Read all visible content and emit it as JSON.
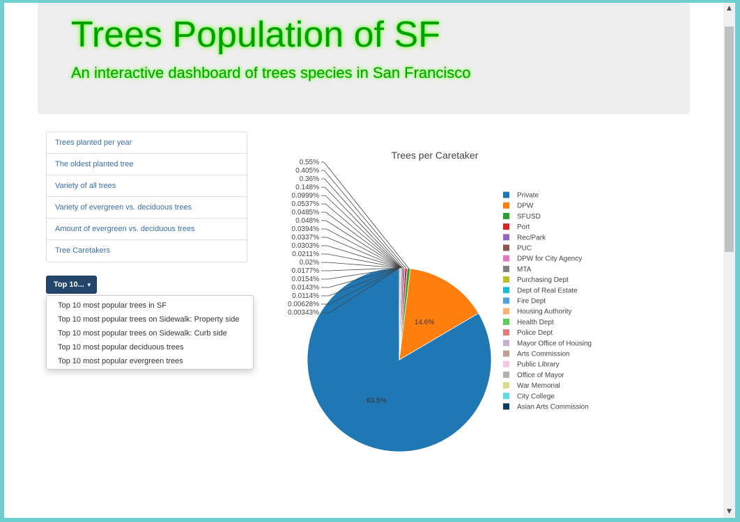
{
  "header": {
    "title": "Trees Population of SF",
    "subtitle": "An interactive dashboard of trees species in San Francisco"
  },
  "nav": {
    "items": [
      {
        "label": "Trees planted per year"
      },
      {
        "label": "The oldest planted tree"
      },
      {
        "label": "Variety of all trees"
      },
      {
        "label": "Variety of evergreen vs. deciduous trees"
      },
      {
        "label": "Amount of evergreen vs. deciduous trees"
      },
      {
        "label": "Tree Caretakers"
      }
    ]
  },
  "dropdown": {
    "button_label": "Top 10...",
    "caret_icon": "caret-down-icon",
    "items": [
      {
        "label": "Top 10 most popular trees in SF"
      },
      {
        "label": "Top 10 most popular trees on Sidewalk: Property side"
      },
      {
        "label": "Top 10 most popular trees on Sidewalk: Curb side"
      },
      {
        "label": "Top 10 most popular deciduous trees"
      },
      {
        "label": "Top 10 most popular evergreen trees"
      }
    ]
  },
  "chart_data": {
    "type": "pie",
    "title": "Trees per Caretaker",
    "legend_position": "right",
    "slices": [
      {
        "name": "Private",
        "percent": 83.5,
        "label": "83.5%",
        "color": "#1f77b4"
      },
      {
        "name": "DPW",
        "percent": 14.6,
        "label": "14.6%",
        "color": "#ff7f0e"
      },
      {
        "name": "SFUSD",
        "percent": 0.55,
        "label": "0.55%",
        "color": "#2ca02c"
      },
      {
        "name": "Port",
        "percent": 0.405,
        "label": "0.405%",
        "color": "#d62728"
      },
      {
        "name": "Rec/Park",
        "percent": 0.36,
        "label": "0.36%",
        "color": "#9467bd"
      },
      {
        "name": "PUC",
        "percent": 0.148,
        "label": "0.148%",
        "color": "#8c564b"
      },
      {
        "name": "DPW for City Agency",
        "percent": 0.0999,
        "label": "0.0999%",
        "color": "#e377c2"
      },
      {
        "name": "MTA",
        "percent": 0.0537,
        "label": "0.0537%",
        "color": "#7f7f7f"
      },
      {
        "name": "Purchasing Dept",
        "percent": 0.0485,
        "label": "0.0485%",
        "color": "#bcbd22"
      },
      {
        "name": "Dept of Real Estate",
        "percent": 0.048,
        "label": "0.048%",
        "color": "#17becf"
      },
      {
        "name": "Fire Dept",
        "percent": 0.0394,
        "label": "0.0394%",
        "color": "#4fa3d8"
      },
      {
        "name": "Housing Authority",
        "percent": 0.0337,
        "label": "0.0337%",
        "color": "#ffb070"
      },
      {
        "name": "Health Dept",
        "percent": 0.0303,
        "label": "0.0303%",
        "color": "#5ccc5c"
      },
      {
        "name": "Police Dept",
        "percent": 0.0211,
        "label": "0.0211%",
        "color": "#e07b7b"
      },
      {
        "name": "Mayor Office of Housing",
        "percent": 0.02,
        "label": "0.02%",
        "color": "#c5b0d5"
      },
      {
        "name": "Arts Commission",
        "percent": 0.0177,
        "label": "0.0177%",
        "color": "#c49c94"
      },
      {
        "name": "Public Library",
        "percent": 0.0154,
        "label": "0.0154%",
        "color": "#f7c6e0"
      },
      {
        "name": "Office of Mayor",
        "percent": 0.0143,
        "label": "0.0143%",
        "color": "#b0b0b0"
      },
      {
        "name": "War Memorial",
        "percent": 0.0114,
        "label": "0.0114%",
        "color": "#dbdb8d"
      },
      {
        "name": "City College",
        "percent": 0.00628,
        "label": "0.00628%",
        "color": "#5fd8e6"
      },
      {
        "name": "Asian Arts Commission",
        "percent": 0.00343,
        "label": "0.00343%",
        "color": "#0b3d5c"
      }
    ]
  }
}
